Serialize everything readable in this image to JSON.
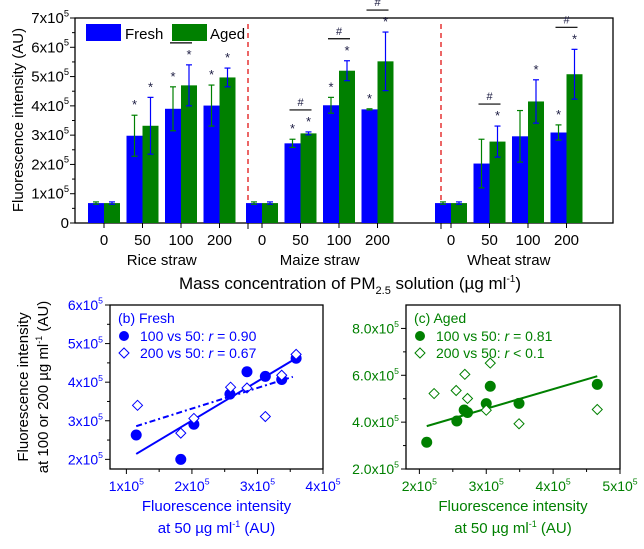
{
  "colors": {
    "fresh": "#0000ff",
    "aged": "#008000",
    "divider": "#e00000",
    "axis": "#000000",
    "sig": "#1a1a40"
  },
  "chart_data": [
    {
      "type": "bar",
      "panel": "a",
      "title": "",
      "ylabel": "Fluorescence intensity (AU)",
      "xlabel": "Mass concentration of PM2.5 solution (µg ml-1)",
      "xlabel_parts": {
        "pre": "Mass concentration of PM",
        "sub": "2.5",
        "mid": " solution (",
        "mu": "µ",
        "post": "g ml",
        "sup": "-1",
        "end": ")"
      },
      "ylim": [
        0,
        700000
      ],
      "yticks": [
        {
          "v": 0,
          "label": "0",
          "sup": ""
        },
        {
          "v": 100000,
          "label": "1x10",
          "sup": "5"
        },
        {
          "v": 200000,
          "label": "2x10",
          "sup": "5"
        },
        {
          "v": 300000,
          "label": "3x10",
          "sup": "5"
        },
        {
          "v": 400000,
          "label": "4x10",
          "sup": "5"
        },
        {
          "v": 500000,
          "label": "5x10",
          "sup": "5"
        },
        {
          "v": 600000,
          "label": "6x10",
          "sup": "5"
        },
        {
          "v": 700000,
          "label": "7x10",
          "sup": "5"
        }
      ],
      "legend": {
        "position": "top-left",
        "entries": [
          "Fresh",
          "Aged"
        ]
      },
      "categories": [
        "0",
        "50",
        "100",
        "200"
      ],
      "groups": [
        {
          "name": "Rice straw",
          "series": [
            {
              "name": "Fresh",
              "values": [
                68000,
                298000,
                390000,
                401000
              ],
              "err": [
                4000,
                70000,
                75000,
                70000
              ]
            },
            {
              "name": "Aged",
              "values": [
                68000,
                332000,
                470000,
                497000
              ],
              "err": [
                4000,
                97000,
                70000,
                32000
              ]
            }
          ],
          "stars": [
            [
              false,
              true,
              true,
              true
            ],
            [
              false,
              true,
              true,
              true
            ]
          ],
          "hash": [
            false,
            false,
            true,
            false
          ]
        },
        {
          "name": "Maize straw",
          "series": [
            {
              "name": "Fresh",
              "values": [
                68000,
                272000,
                402000,
                388000
              ],
              "err": [
                4000,
                14000,
                27000,
                2000
              ]
            },
            {
              "name": "Aged",
              "values": [
                68000,
                306000,
                520000,
                552000
              ],
              "err": [
                4000,
                5000,
                34000,
                100000
              ]
            }
          ],
          "stars": [
            [
              false,
              true,
              true,
              true
            ],
            [
              false,
              true,
              true,
              true
            ]
          ],
          "hash": [
            false,
            true,
            true,
            true
          ]
        },
        {
          "name": "Wheat straw",
          "series": [
            {
              "name": "Fresh",
              "values": [
                68000,
                203000,
                296000,
                309000
              ],
              "err": [
                4000,
                83000,
                88000,
                26000
              ]
            },
            {
              "name": "Aged",
              "values": [
                68000,
                278000,
                415000,
                508000
              ],
              "err": [
                4000,
                53000,
                74000,
                85000
              ]
            }
          ],
          "stars": [
            [
              false,
              false,
              false,
              true
            ],
            [
              false,
              true,
              true,
              true
            ]
          ],
          "hash": [
            false,
            true,
            false,
            true
          ]
        }
      ]
    },
    {
      "type": "scatter",
      "panel": "b",
      "title": "(b) Fresh",
      "xlabel": [
        "Fluorescence intensity",
        "at 50 µg ml-1 (AU)"
      ],
      "ylabel": [
        "Fluorescence intensity",
        "at 100 or 200 µg ml-1 (AU)"
      ],
      "xlim": [
        75000,
        400000
      ],
      "ylim": [
        175000,
        600000
      ],
      "xticks": [
        {
          "v": 100000,
          "label": "1x10",
          "sup": "5"
        },
        {
          "v": 200000,
          "label": "2x10",
          "sup": "5"
        },
        {
          "v": 300000,
          "label": "3x10",
          "sup": "5"
        },
        {
          "v": 400000,
          "label": "4x10",
          "sup": "5"
        }
      ],
      "yticks": [
        {
          "v": 200000,
          "label": "2x10",
          "sup": "5"
        },
        {
          "v": 300000,
          "label": "3x10",
          "sup": "5"
        },
        {
          "v": 400000,
          "label": "4x10",
          "sup": "5"
        },
        {
          "v": 500000,
          "label": "5x10",
          "sup": "5"
        },
        {
          "v": 600000,
          "label": "6x10",
          "sup": "5"
        }
      ],
      "legend": {
        "position": "top-left",
        "entries": [
          {
            "label": "100 vs 50: ",
            "r": "r = 0.90",
            "marker": "filled-circle"
          },
          {
            "label": "200 vs 50:  ",
            "r": "r = 0.67",
            "marker": "open-diamond"
          }
        ]
      },
      "series": [
        {
          "name": "100 vs 50",
          "x": [
            115000,
            183000,
            203000,
            258000,
            284000,
            312000,
            337000,
            359000
          ],
          "y": [
            263000,
            200000,
            291000,
            369000,
            427000,
            415000,
            407000,
            462000
          ],
          "fit": [
            [
              115000,
              214000
            ],
            [
              359000,
              462000
            ]
          ],
          "fit_style": "solid"
        },
        {
          "name": "200 vs 50",
          "x": [
            117000,
            183000,
            203000,
            259000,
            284000,
            312000,
            337000,
            359000
          ],
          "y": [
            340000,
            268000,
            306000,
            387000,
            385000,
            311000,
            418000,
            472000
          ],
          "fit": [
            [
              115000,
              286000
            ],
            [
              354000,
              414000
            ]
          ],
          "fit_style": "dashed"
        }
      ]
    },
    {
      "type": "scatter",
      "panel": "c",
      "title": "(c) Aged",
      "xlabel": [
        "Fluorescence intensity",
        "at 50 µg ml-1 (AU)"
      ],
      "ylabel": [],
      "xlim": [
        180000,
        500000
      ],
      "ylim": [
        200000,
        900000
      ],
      "xticks": [
        {
          "v": 200000,
          "label": "2x10",
          "sup": "5"
        },
        {
          "v": 300000,
          "label": "3x10",
          "sup": "5"
        },
        {
          "v": 400000,
          "label": "4x10",
          "sup": "5"
        },
        {
          "v": 500000,
          "label": "5x10",
          "sup": "5"
        }
      ],
      "yticks": [
        {
          "v": 200000,
          "label": "2.0x10",
          "sup": "5"
        },
        {
          "v": 400000,
          "label": "4.0x10",
          "sup": "5"
        },
        {
          "v": 600000,
          "label": "6.0x10",
          "sup": "5"
        },
        {
          "v": 800000,
          "label": "8.0x10",
          "sup": "5"
        }
      ],
      "legend": {
        "position": "top-left",
        "entries": [
          {
            "label": "100 vs 50: ",
            "r": "r = 0.81",
            "marker": "filled-circle"
          },
          {
            "label": "200 vs 50:  ",
            "r": "r < 0.1",
            "marker": "open-diamond"
          }
        ]
      },
      "series": [
        {
          "name": "100 vs 50",
          "x": [
            211000,
            256000,
            267000,
            272000,
            300000,
            306000,
            349000,
            466000
          ],
          "y": [
            314000,
            405000,
            452000,
            441000,
            479000,
            553000,
            480000,
            561000
          ],
          "fit": [
            [
              211000,
              383000
            ],
            [
              466000,
              596000
            ]
          ],
          "fit_style": "solid"
        },
        {
          "name": "200 vs 50",
          "x": [
            222000,
            255000,
            268000,
            272000,
            300000,
            306000,
            349000,
            466000
          ],
          "y": [
            522000,
            535000,
            604000,
            501000,
            451000,
            652000,
            393000,
            454000
          ]
        }
      ]
    }
  ]
}
